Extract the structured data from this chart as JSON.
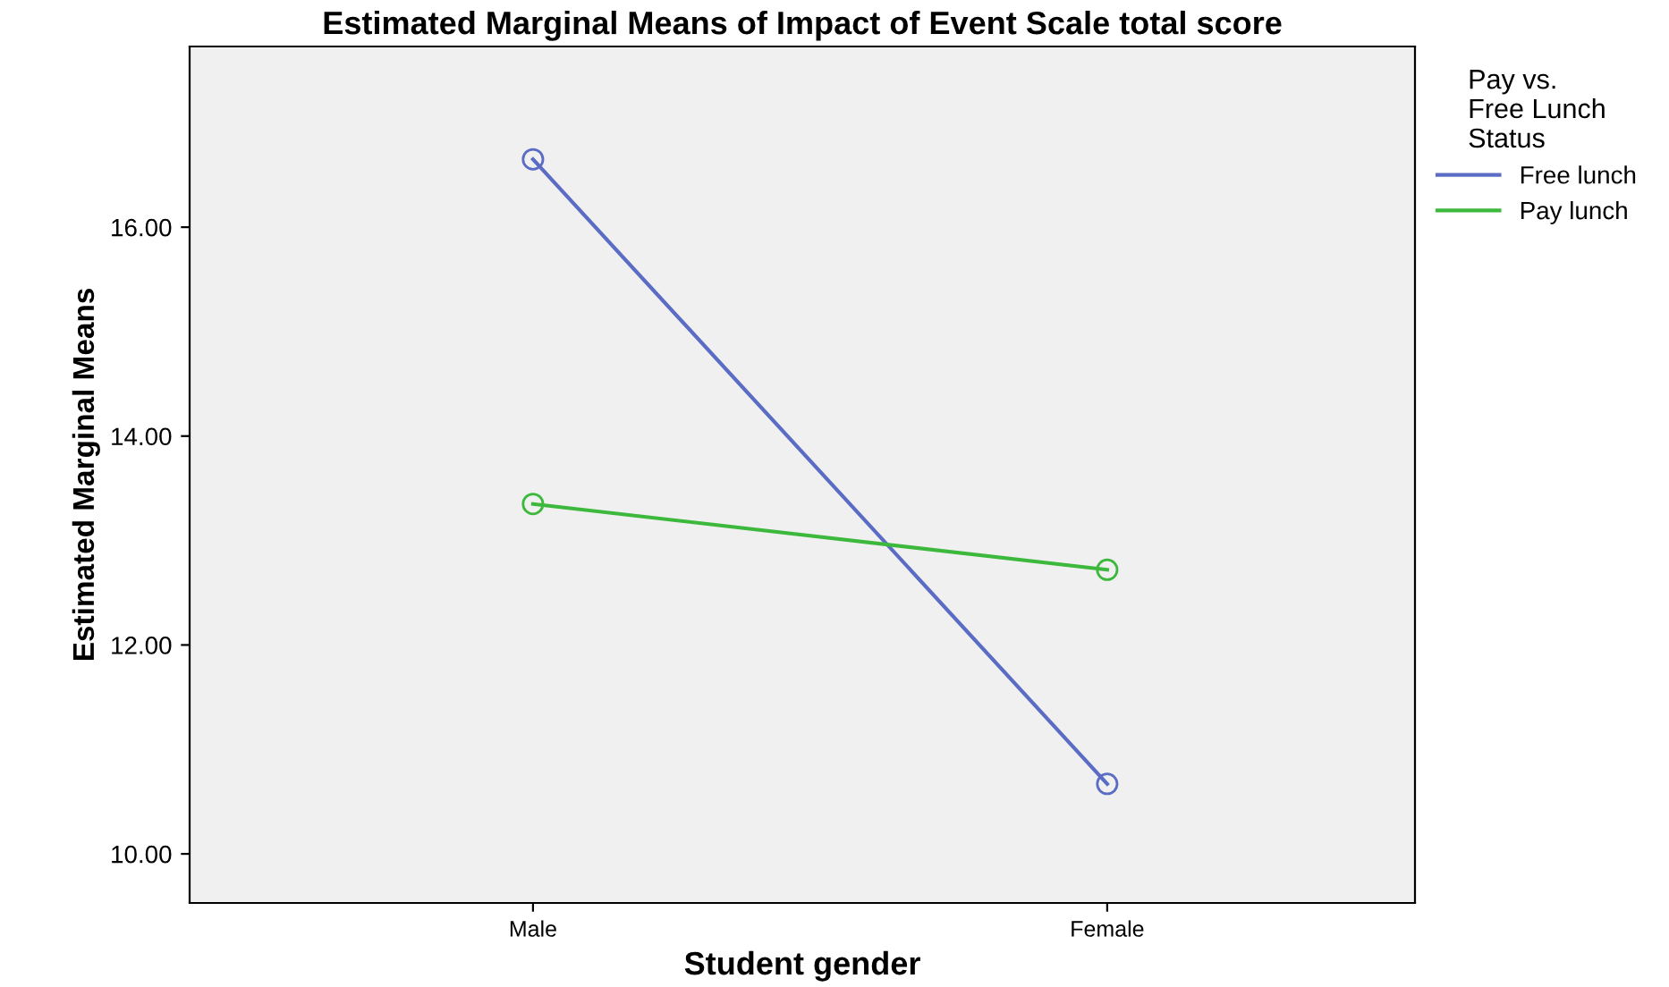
{
  "chart_data": {
    "type": "line",
    "title": "Estimated Marginal Means of Impact of Event Scale total score",
    "xlabel": "Student gender",
    "ylabel": "Estimated Marginal Means",
    "legend_title": "Pay vs.\nFree Lunch\nStatus",
    "categories": [
      "Male",
      "Female"
    ],
    "series": [
      {
        "name": "Free lunch",
        "color": "#5b6cc4",
        "values": [
          16.65,
          10.67
        ]
      },
      {
        "name": "Pay lunch",
        "color": "#3cb93c",
        "values": [
          13.35,
          12.72
        ]
      }
    ],
    "ylim": [
      9.53,
      17.73
    ],
    "yticks": [
      {
        "value": 10,
        "label": "10.00"
      },
      {
        "value": 12,
        "label": "12.00"
      },
      {
        "value": 14,
        "label": "14.00"
      },
      {
        "value": 16,
        "label": "16.00"
      }
    ],
    "grid": false,
    "legend": "right",
    "marker": "circle",
    "line_style": "solid"
  }
}
